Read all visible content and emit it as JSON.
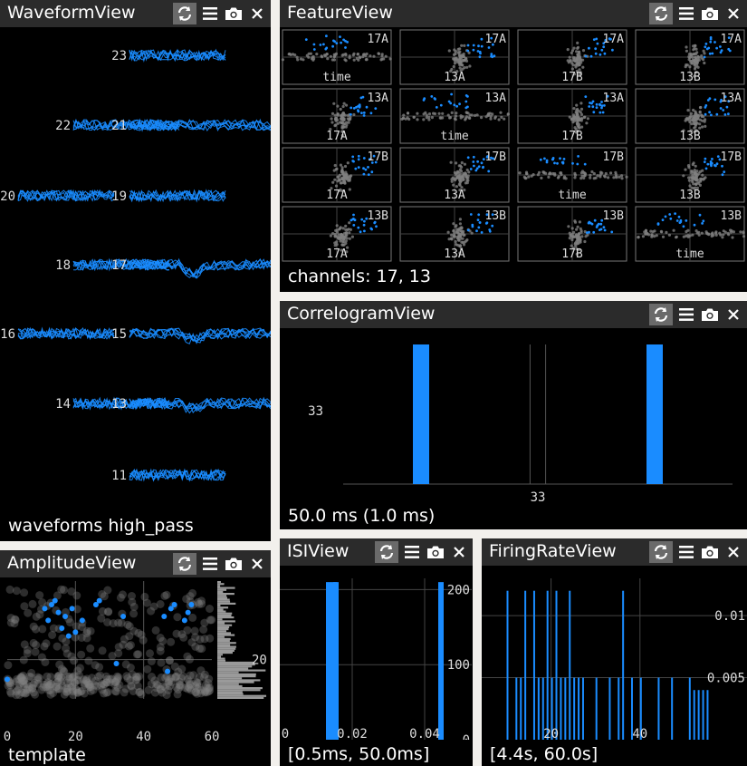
{
  "panels": {
    "waveform": {
      "title": "WaveformView",
      "status": "waveforms high_pass"
    },
    "feature": {
      "title": "FeatureView",
      "status": "channels: 17, 13"
    },
    "correlogram": {
      "title": "CorrelogramView",
      "status": "50.0 ms (1.0 ms)"
    },
    "amplitude": {
      "title": "AmplitudeView",
      "status": "template"
    },
    "isi": {
      "title": "ISIView",
      "status": "[0.5ms, 50.0ms]"
    },
    "firingrate": {
      "title": "FiringRateView",
      "status": "[4.4s, 60.0s]"
    }
  },
  "icons": {
    "sync": "sync-icon",
    "menu": "menu-icon",
    "camera": "camera-icon",
    "close": "close-icon"
  },
  "colors": {
    "cluster": "#1a8cff",
    "background_points": "#808080",
    "titlebar": "#2b2b2b",
    "panel_bg": "#000000"
  },
  "waveform": {
    "channels": [
      {
        "label": "23",
        "col": 1,
        "row": 0
      },
      {
        "label": "22",
        "col": 0,
        "row": 1
      },
      {
        "label": "21",
        "col": 1,
        "row": 1
      },
      {
        "label": "20",
        "col": -1,
        "row": 2
      },
      {
        "label": "19",
        "col": 1,
        "row": 2
      },
      {
        "label": "18",
        "col": 0,
        "row": 3
      },
      {
        "label": "17",
        "col": 1,
        "row": 3
      },
      {
        "label": "16",
        "col": -1,
        "row": 4
      },
      {
        "label": "15",
        "col": 1,
        "row": 4
      },
      {
        "label": "14",
        "col": 0,
        "row": 5
      },
      {
        "label": "13",
        "col": 1,
        "row": 5
      },
      {
        "label": "11",
        "col": 1,
        "row": 6
      }
    ]
  },
  "feature": {
    "cells": [
      [
        {
          "corner": "17A",
          "bottom": "time"
        },
        {
          "corner": "17A",
          "bottom": "13A"
        },
        {
          "corner": "17A",
          "bottom": "17B"
        },
        {
          "corner": "17A",
          "bottom": "13B"
        }
      ],
      [
        {
          "corner": "13A",
          "bottom": "17A"
        },
        {
          "corner": "13A",
          "bottom": "time"
        },
        {
          "corner": "13A",
          "bottom": "17B"
        },
        {
          "corner": "13A",
          "bottom": "13B"
        }
      ],
      [
        {
          "corner": "17B",
          "bottom": "17A"
        },
        {
          "corner": "17B",
          "bottom": "13A"
        },
        {
          "corner": "17B",
          "bottom": "time"
        },
        {
          "corner": "17B",
          "bottom": "13B"
        }
      ],
      [
        {
          "corner": "13B",
          "bottom": "17A"
        },
        {
          "corner": "13B",
          "bottom": "13A"
        },
        {
          "corner": "13B",
          "bottom": "17B"
        },
        {
          "corner": "13B",
          "bottom": "time"
        }
      ]
    ]
  },
  "chart_data": [
    {
      "type": "bar",
      "panel": "CorrelogramView",
      "title": "",
      "xlabel": "",
      "ylabel": "",
      "tick_labels": {
        "x": [
          "33"
        ],
        "y": [
          "33"
        ]
      },
      "bars": [
        {
          "x": -30,
          "value": 33
        },
        {
          "x": 30,
          "value": 33
        }
      ],
      "xlim": [
        -50,
        50
      ],
      "ylim": [
        0,
        33
      ]
    },
    {
      "type": "bar",
      "panel": "ISIView",
      "title": "",
      "xlabel": "",
      "ylabel": "",
      "x_ticks": [
        "0",
        "0.02",
        "0.04"
      ],
      "y_ticks": [
        "0",
        "100",
        "200"
      ],
      "x": [
        0.0135,
        0.015,
        0.0155,
        0.0445
      ],
      "values": [
        210,
        210,
        210,
        210
      ],
      "xlim": [
        0.0005,
        0.05
      ],
      "ylim": [
        0,
        215
      ]
    },
    {
      "type": "bar",
      "panel": "FiringRateView",
      "title": "",
      "xlabel": "",
      "ylabel": "",
      "x_ticks": [
        "20",
        "40"
      ],
      "y_ticks": [
        "0.005",
        "0.01"
      ],
      "x": [
        10,
        12,
        13,
        14,
        16,
        17,
        18,
        19,
        20,
        21,
        22,
        23,
        24,
        25,
        26,
        27,
        30,
        33,
        35,
        36,
        38,
        40,
        44,
        47,
        51,
        52,
        53,
        54,
        55
      ],
      "values": [
        0.012,
        0.005,
        0.005,
        0.012,
        0.012,
        0.005,
        0.005,
        0.012,
        0.005,
        0.012,
        0.005,
        0.005,
        0.012,
        0.005,
        0.005,
        0.005,
        0.005,
        0.005,
        0.005,
        0.012,
        0.005,
        0.005,
        0.005,
        0.005,
        0.005,
        0.004,
        0.004,
        0.004,
        0.004
      ],
      "xlim": [
        4.4,
        60
      ],
      "ylim": [
        0,
        0.013
      ]
    },
    {
      "type": "scatter",
      "panel": "AmplitudeView",
      "title": "",
      "xlabel": "",
      "ylabel": "",
      "x_ticks": [
        "0",
        "20",
        "40",
        "60"
      ],
      "y_ticks": [
        "20"
      ],
      "series": [
        {
          "color": "#1a8cff",
          "x": [
            0,
            11,
            12,
            13,
            14,
            15,
            16,
            17,
            18,
            19,
            20,
            22,
            26,
            27,
            32,
            34,
            46,
            47,
            48,
            49,
            52,
            53,
            54
          ],
          "y": [
            15,
            33,
            30,
            34,
            35,
            32,
            28,
            31,
            26,
            33,
            27,
            30,
            34,
            35,
            19,
            31,
            31,
            17,
            33,
            34,
            30,
            32,
            34
          ]
        }
      ],
      "xlim": [
        0,
        60
      ],
      "ylim": [
        10,
        40
      ]
    }
  ]
}
